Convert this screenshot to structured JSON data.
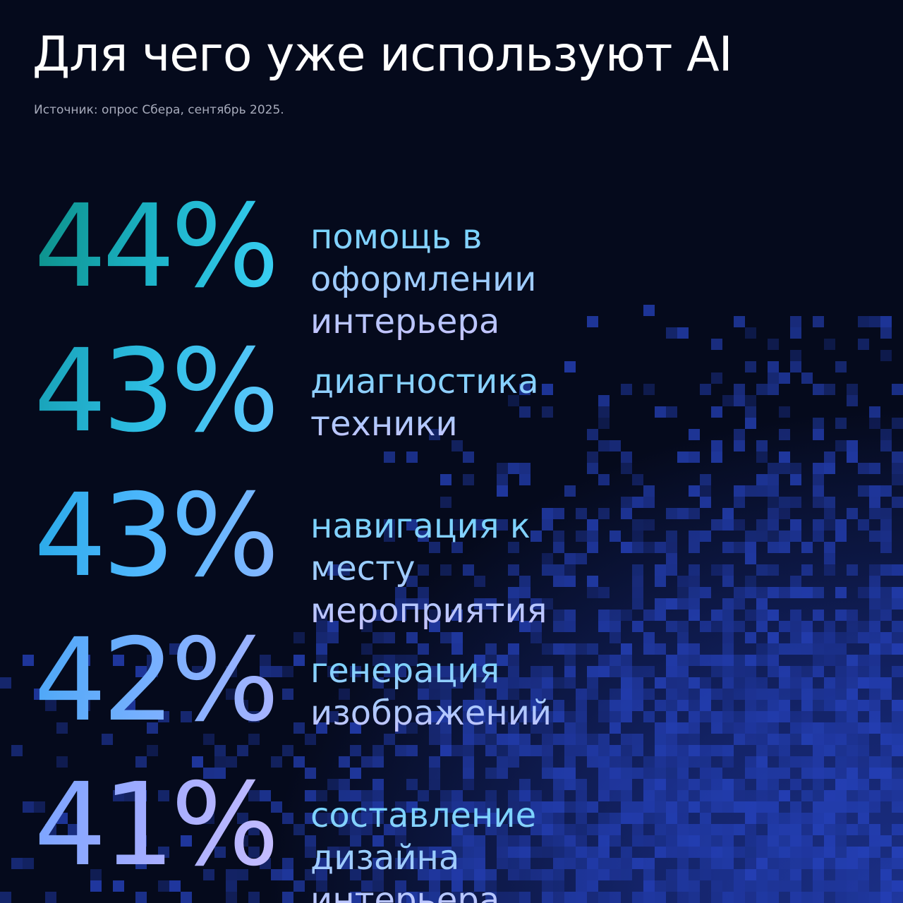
{
  "chart_data": {
    "type": "stat",
    "title": "Для чего уже используют AI",
    "subtitle": "Источник: опрос Сбера, сентябрь 2025.",
    "categories": [
      "помощь в оформлении\nинтерьера",
      "диагностика\nтехники",
      "навигация к месту\nмероприятия",
      "генерация\nизображений",
      "составление\nдизайна интерьера"
    ],
    "values": [
      44,
      43,
      43,
      42,
      41
    ],
    "value_labels": [
      "44%",
      "43%",
      "43%",
      "42%",
      "41%"
    ]
  }
}
